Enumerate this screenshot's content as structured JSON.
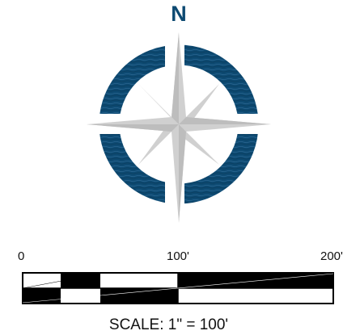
{
  "compass": {
    "north_label": "N",
    "ring_color": "#0d4a72",
    "star_color": "#d0d0d0",
    "icon": "compass-rose-icon"
  },
  "scale_bar": {
    "ticks": [
      "0",
      "100'",
      "200'"
    ],
    "caption": "SCALE: 1\" = 100'",
    "fill_color": "#000000",
    "background_color": "#ffffff"
  }
}
